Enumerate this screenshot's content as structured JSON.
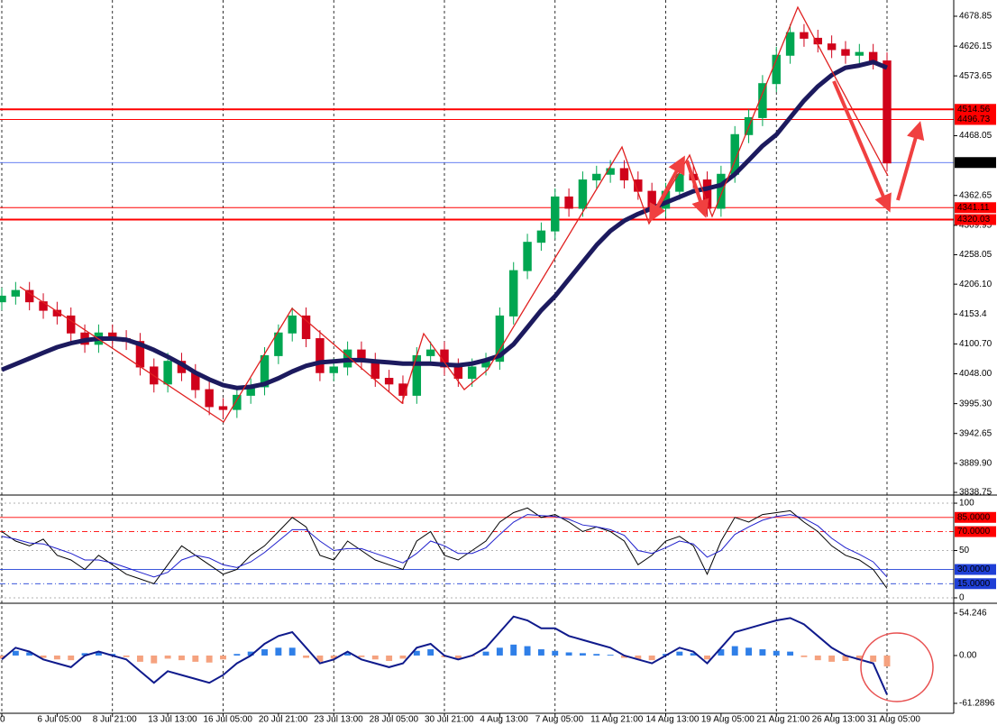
{
  "chart_data": [
    {
      "type": "candlestick",
      "categories": [
        "0",
        null,
        null,
        null,
        "6 Jul 05:00",
        null,
        null,
        null,
        "8 Jul 21:00",
        null,
        null,
        null,
        "13 Jul 13:00",
        null,
        null,
        null,
        "16 Jul 05:00",
        null,
        null,
        null,
        "20 Jul 21:00",
        null,
        null,
        null,
        "23 Jul 13:00",
        null,
        null,
        null,
        "28 Jul 05:00",
        null,
        null,
        null,
        "30 Jul 21:00",
        null,
        null,
        null,
        "4 Aug 13:00",
        null,
        null,
        null,
        "7 Aug 05:00",
        null,
        null,
        null,
        "11 Aug 21:00",
        null,
        null,
        null,
        "14 Aug 13:00",
        null,
        null,
        null,
        "19 Aug 05:00",
        null,
        null,
        null,
        "21 Aug 21:00",
        null,
        null,
        null,
        "26 Aug 13:00",
        null,
        null,
        null,
        "31 Aug 05:00"
      ],
      "open": [
        4175,
        4185,
        4195,
        4175,
        4160,
        4150,
        4120,
        4100,
        4120,
        4110,
        4105,
        4060,
        4030,
        4070,
        4050,
        4020,
        3990,
        3985,
        4010,
        4025,
        4080,
        4120,
        4150,
        4110,
        4050,
        4060,
        4090,
        4070,
        4040,
        4030,
        4010,
        4080,
        4090,
        4060,
        4040,
        4060,
        4070,
        4150,
        4230,
        4280,
        4300,
        4360,
        4340,
        4390,
        4400,
        4410,
        4390,
        4370,
        4340,
        4370,
        4400,
        4390,
        4340,
        4400,
        4470,
        4500,
        4560,
        4610,
        4650,
        4640,
        4630,
        4620,
        4610,
        4615,
        4600
      ],
      "high": [
        4200,
        4210,
        4210,
        4190,
        4175,
        4165,
        4135,
        4135,
        4135,
        4125,
        4120,
        4075,
        4085,
        4085,
        4065,
        4035,
        4005,
        4025,
        4040,
        4095,
        4135,
        4165,
        4165,
        4125,
        4075,
        4105,
        4105,
        4085,
        4055,
        4045,
        4095,
        4105,
        4105,
        4075,
        4075,
        4085,
        4165,
        4245,
        4295,
        4315,
        4375,
        4375,
        4405,
        4415,
        4425,
        4425,
        4405,
        4385,
        4385,
        4415,
        4415,
        4405,
        4415,
        4485,
        4515,
        4575,
        4625,
        4665,
        4665,
        4655,
        4645,
        4635,
        4630,
        4630,
        4615
      ],
      "low": [
        4160,
        4170,
        4160,
        4145,
        4135,
        4105,
        4085,
        4085,
        4095,
        4090,
        4045,
        4015,
        4015,
        4035,
        4005,
        3975,
        3970,
        3970,
        3995,
        4010,
        4065,
        4105,
        4095,
        4035,
        4035,
        4045,
        4055,
        4025,
        4015,
        3995,
        3995,
        4065,
        4045,
        4025,
        4025,
        4045,
        4055,
        4135,
        4215,
        4265,
        4285,
        4325,
        4325,
        4375,
        4385,
        4375,
        4355,
        4325,
        4325,
        4355,
        4375,
        4325,
        4325,
        4385,
        4455,
        4485,
        4545,
        4595,
        4625,
        4615,
        4605,
        4595,
        4595,
        4585,
        4405
      ],
      "close": [
        4185,
        4195,
        4175,
        4160,
        4150,
        4120,
        4100,
        4120,
        4110,
        4105,
        4060,
        4030,
        4070,
        4050,
        4020,
        3990,
        3985,
        4010,
        4025,
        4080,
        4120,
        4150,
        4110,
        4050,
        4060,
        4090,
        4070,
        4040,
        4030,
        4010,
        4080,
        4090,
        4060,
        4040,
        4060,
        4070,
        4150,
        4230,
        4280,
        4300,
        4360,
        4340,
        4390,
        4400,
        4410,
        4390,
        4370,
        4340,
        4370,
        4400,
        4390,
        4340,
        4400,
        4470,
        4500,
        4560,
        4610,
        4650,
        4640,
        4630,
        4620,
        4610,
        4615,
        4600,
        4420
      ],
      "ma": [
        4055,
        4065,
        4075,
        4085,
        4095,
        4102,
        4107,
        4110,
        4110,
        4108,
        4100,
        4090,
        4078,
        4065,
        4050,
        4038,
        4028,
        4023,
        4025,
        4030,
        4040,
        4052,
        4062,
        4068,
        4070,
        4072,
        4072,
        4070,
        4068,
        4066,
        4066,
        4066,
        4064,
        4063,
        4066,
        4072,
        4080,
        4100,
        4130,
        4160,
        4185,
        4215,
        4245,
        4275,
        4300,
        4318,
        4330,
        4340,
        4350,
        4360,
        4370,
        4375,
        4381,
        4400,
        4425,
        4450,
        4470,
        4500,
        4530,
        4555,
        4575,
        4588,
        4592,
        4598,
        4588
      ],
      "ma_color": "#1c1a5e",
      "up_color": "#00a651",
      "down_color": "#d0021b",
      "ylim": [
        3835.6,
        4707.5
      ],
      "yticks": [
        4678.85,
        4626.15,
        4573.65,
        4468.05,
        4362.65,
        4309.95,
        4258.05,
        {
          "value": 4206.1,
          "label": "4206.10"
        },
        4153.4,
        {
          "value": 4100.7,
          "label": "4100.70"
        },
        {
          "value": 4048,
          "label": "4048.00"
        },
        {
          "value": 3995.3,
          "label": "3995.30"
        },
        3942.65,
        {
          "value": 3889.9,
          "label": "3889.90"
        },
        3838.75
      ],
      "levels": [
        4514.56,
        4496.73,
        4341.11,
        4320.03
      ],
      "level_color": "#ff0000",
      "current_price": {
        "value": 4420.7,
        "label": "4420.70"
      },
      "current_color": "#3355ee",
      "grid": true
    },
    {
      "type": "line",
      "series": [
        {
          "color": "#000000",
          "values": [
            70,
            60,
            55,
            62,
            45,
            40,
            30,
            45,
            35,
            25,
            20,
            15,
            35,
            55,
            45,
            35,
            25,
            30,
            45,
            55,
            70,
            85,
            75,
            45,
            40,
            60,
            50,
            40,
            35,
            30,
            60,
            70,
            45,
            40,
            50,
            60,
            80,
            90,
            95,
            85,
            88,
            80,
            70,
            75,
            70,
            60,
            35,
            45,
            60,
            65,
            55,
            25,
            60,
            85,
            80,
            88,
            90,
            92,
            80,
            70,
            55,
            45,
            40,
            30,
            10
          ]
        },
        {
          "color": "#2020cc",
          "values": [
            65,
            62,
            58,
            57,
            52,
            47,
            40,
            40,
            37,
            32,
            27,
            22,
            27,
            40,
            45,
            42,
            35,
            32,
            38,
            48,
            60,
            72,
            72,
            60,
            50,
            52,
            52,
            47,
            42,
            37,
            47,
            60,
            55,
            47,
            47,
            53,
            67,
            80,
            88,
            87,
            86,
            83,
            77,
            75,
            72,
            66,
            50,
            47,
            53,
            60,
            57,
            43,
            50,
            67,
            75,
            82,
            86,
            88,
            84,
            76,
            63,
            53,
            46,
            38,
            22
          ]
        }
      ],
      "ylim": [
        -3.8,
        106.7
      ],
      "yticks": [
        100,
        50,
        0
      ],
      "upper_levels": [
        {
          "value": 85,
          "label": "85.0000"
        },
        {
          "value": 70,
          "label": "70.0000"
        }
      ],
      "upper_color": "#ff0000",
      "lower_levels": [
        {
          "value": 30,
          "label": "30.0000"
        },
        {
          "value": 15,
          "label": "15.0000"
        }
      ],
      "lower_color": "#1f3fd6"
    },
    {
      "type": "macd",
      "histogram": [
        -4,
        6,
        4,
        -3,
        -5,
        -6,
        3,
        4,
        2,
        -2,
        -8,
        -10,
        -4,
        -6,
        -8,
        -9,
        -5,
        2,
        5,
        8,
        10,
        10,
        -3,
        -8,
        -4,
        3,
        -2,
        -5,
        -7,
        -4,
        6,
        8,
        -2,
        -4,
        -1,
        5,
        10,
        14,
        12,
        8,
        6,
        4,
        3,
        2,
        1,
        -3,
        -5,
        -6,
        2,
        5,
        3,
        -5,
        8,
        12,
        10,
        8,
        6,
        5,
        -2,
        -6,
        -8,
        -7,
        -6,
        -8,
        -14
      ],
      "positive_color": "#2f7fe8",
      "negative_color": "#f5a27f",
      "line": [
        -5,
        10,
        5,
        -5,
        -10,
        -15,
        0,
        5,
        0,
        -5,
        -20,
        -35,
        -20,
        -25,
        -30,
        -35,
        -25,
        -10,
        0,
        15,
        25,
        30,
        10,
        -10,
        -5,
        5,
        -5,
        -10,
        -15,
        -10,
        10,
        15,
        0,
        -5,
        0,
        10,
        30,
        50,
        45,
        35,
        35,
        25,
        20,
        15,
        10,
        0,
        -5,
        -10,
        0,
        10,
        5,
        -10,
        10,
        30,
        35,
        40,
        45,
        48,
        40,
        25,
        10,
        0,
        -5,
        -10,
        -50
      ],
      "line_color": "#0f1a8c",
      "ylim": [
        -72.84,
        64.65
      ],
      "yticks": [
        54.246,
        {
          "value": 0,
          "label": "0.00"
        },
        -61.2896
      ]
    }
  ]
}
